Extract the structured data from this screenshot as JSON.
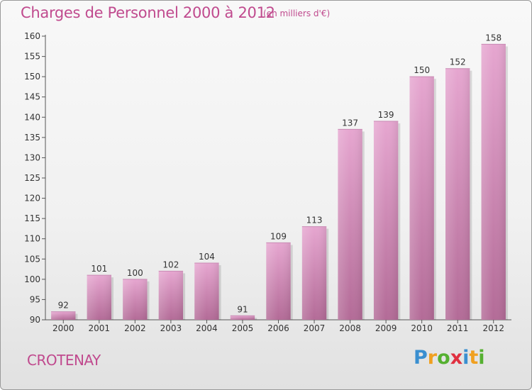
{
  "header": {
    "title": "Charges de Personnel 2000 à 2012",
    "subtitle": "(en milliers d'€)"
  },
  "footer": {
    "commune": "CROTENAY",
    "brand": {
      "letters": [
        "P",
        "r",
        "o",
        "x",
        "i",
        "t",
        "i"
      ],
      "colors": [
        "#3a8fd0",
        "#f0a020",
        "#55b030",
        "#e03040",
        "#3a8fd0",
        "#f0a020",
        "#55b030"
      ]
    }
  },
  "chart_data": {
    "type": "bar",
    "title": "Charges de Personnel 2000 à 2012",
    "subtitle": "(en milliers d'€)",
    "categories": [
      "2000",
      "2001",
      "2002",
      "2003",
      "2004",
      "2005",
      "2006",
      "2007",
      "2008",
      "2009",
      "2010",
      "2011",
      "2012"
    ],
    "values": [
      92,
      101,
      100,
      102,
      104,
      91,
      109,
      113,
      137,
      139,
      150,
      152,
      158
    ],
    "ylim": [
      90,
      160
    ],
    "yticks": [
      90,
      95,
      100,
      105,
      110,
      115,
      120,
      125,
      130,
      135,
      140,
      145,
      150,
      155,
      160
    ],
    "grid": false,
    "legend": "none",
    "bar_color_top": "#e6a6d0",
    "bar_color_bottom": "#b36b97",
    "text_color": "#c04a8e"
  }
}
